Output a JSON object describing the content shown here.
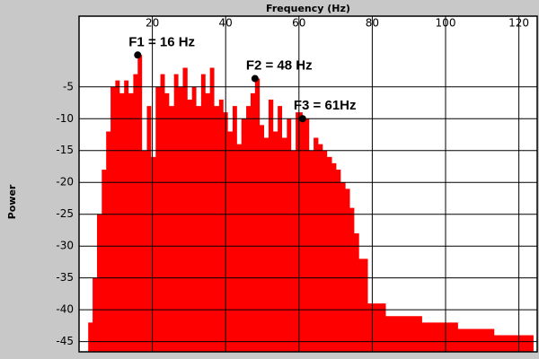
{
  "chart_data": {
    "type": "area",
    "x_label": "Frequency (Hz)",
    "y_label": "Power",
    "color": "#ff0000",
    "x": [
      2.5,
      3.7,
      4.9,
      6.2,
      7.4,
      8.6,
      9.9,
      11.1,
      12.3,
      13.5,
      14.8,
      16,
      17.2,
      18.5,
      19.7,
      20.9,
      22.2,
      23.4,
      24.6,
      25.9,
      27.1,
      28.3,
      29.6,
      30.8,
      32,
      33.3,
      34.5,
      35.7,
      36.9,
      38.2,
      39.4,
      40.6,
      41.9,
      43.1,
      44.3,
      45.6,
      46.8,
      48,
      49.3,
      50.5,
      51.7,
      53,
      54.2,
      55.4,
      56.7,
      57.9,
      59.1,
      61,
      62.8,
      64,
      65.3,
      66.5,
      67.7,
      69,
      70.2,
      71.4,
      72.7,
      73.9,
      75.1,
      76.4,
      78.8,
      83.7,
      93.6,
      103.4,
      113.3,
      124
    ],
    "values": [
      -42,
      -35,
      -25,
      -18,
      -12,
      -5,
      -4,
      -6,
      -4,
      -6,
      -3,
      0,
      -15,
      -8,
      -16,
      -5,
      -3,
      -6,
      -8,
      -3,
      -5,
      -2,
      -7,
      -5,
      -8,
      -3,
      -6,
      -2,
      -8,
      -7,
      -9,
      -12,
      -8,
      -14,
      -10,
      -8,
      -6,
      -3.7,
      -11,
      -13,
      -7,
      -12,
      -8,
      -13,
      -10,
      -15,
      -9,
      -10,
      -15,
      -13,
      -14,
      -15,
      -16,
      -17,
      -18,
      -20,
      -21,
      -24,
      -28,
      -32,
      -39,
      -41,
      -42,
      -43,
      -44,
      -45
    ],
    "xlim": [
      0,
      125
    ],
    "ylim": [
      -46.6,
      6.1
    ],
    "xticks": [
      20,
      40,
      60,
      80,
      100,
      120
    ],
    "yticks": [
      -45,
      -40,
      -35,
      -30,
      -25,
      -20,
      -15,
      -10,
      -5
    ],
    "grid": true,
    "annotations": [
      {
        "text": "F1 = 16 Hz",
        "x": 16,
        "y": 0
      },
      {
        "text": "F2 = 48 Hz",
        "x": 48,
        "y": -3.7
      },
      {
        "text": "F3 = 61Hz",
        "x": 61,
        "y": -10
      }
    ]
  }
}
